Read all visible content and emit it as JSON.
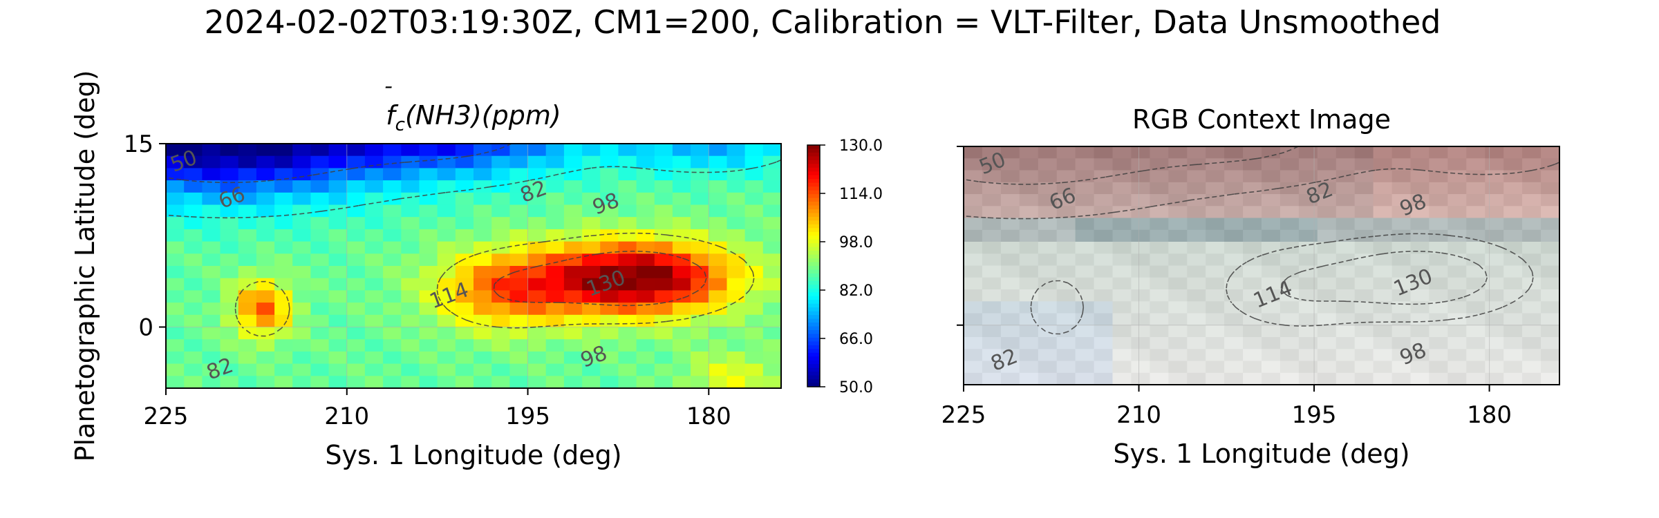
{
  "figure": {
    "suptitle": "2024-02-02T03:19:30Z, CM1=200, Calibration = VLT-Filter, Data Unsmoothed"
  },
  "chart_data": [
    {
      "type": "heatmap",
      "title_base": "f",
      "title_sub": "c",
      "title_rest": "(NH3)(ppm)",
      "xlabel": "Sys. 1 Longitude (deg)",
      "ylabel": "Planetographic Latitude (deg)",
      "xlim": [
        225,
        174
      ],
      "ylim": [
        -5,
        15
      ],
      "xticks": [
        225,
        210,
        195,
        180
      ],
      "yticks": [
        0,
        15
      ],
      "grid": true,
      "colormap": "jet",
      "colorbar": {
        "min": 50.0,
        "max": 130.0,
        "ticks": [
          "50.0",
          "66.0",
          "82.0",
          "98.0",
          "114.0",
          "130.0"
        ]
      },
      "contour_levels": [
        50,
        66,
        82,
        98,
        114,
        130
      ],
      "contour_labels": [
        {
          "text": "50",
          "lon": 223.5,
          "lat": 13.5
        },
        {
          "text": "66",
          "lon": 219.5,
          "lat": 10.5
        },
        {
          "text": "82",
          "lon": 194.5,
          "lat": 11.0
        },
        {
          "text": "98",
          "lon": 188.5,
          "lat": 10.0
        },
        {
          "text": "114",
          "lon": 201.5,
          "lat": 2.5
        },
        {
          "text": "130",
          "lon": 188.5,
          "lat": 3.5
        },
        {
          "text": "82",
          "lon": 220.5,
          "lat": -3.5
        },
        {
          "text": "98",
          "lon": 189.5,
          "lat": -2.5
        }
      ],
      "value_field": {
        "background": 88,
        "components": [
          {
            "lon": 220,
            "lat": 16,
            "amp": -44,
            "sl": 14,
            "sb": 5
          },
          {
            "lon": 200,
            "lat": 16,
            "amp": -24,
            "sl": 10,
            "sb": 3.5
          },
          {
            "lon": 180,
            "lat": 15,
            "amp": -14,
            "sl": 8,
            "sb": 2.5
          },
          {
            "lon": 186,
            "lat": 4,
            "amp": 44,
            "sl": 8,
            "sb": 3
          },
          {
            "lon": 197,
            "lat": 3,
            "amp": 22,
            "sl": 6,
            "sb": 3.2
          },
          {
            "lon": 217,
            "lat": 1.5,
            "amp": 24,
            "sl": 2.4,
            "sb": 2.4
          },
          {
            "lon": 178,
            "lat": -4,
            "amp": 10,
            "sl": 4,
            "sb": 2
          }
        ]
      }
    },
    {
      "type": "image",
      "title": "RGB Context Image",
      "xlabel": "Sys. 1 Longitude (deg)",
      "xlim": [
        225,
        174
      ],
      "ylim": [
        -5,
        15
      ],
      "xticks": [
        225,
        210,
        195,
        180
      ],
      "yticks": [
        0,
        15
      ],
      "grid": true,
      "contour_labels": [
        {
          "text": "50",
          "lon": 222.5,
          "lat": 13.5
        },
        {
          "text": "66",
          "lon": 216.5,
          "lat": 10.5
        },
        {
          "text": "82",
          "lon": 194.5,
          "lat": 11.0
        },
        {
          "text": "98",
          "lon": 186.5,
          "lat": 10.0
        },
        {
          "text": "114",
          "lon": 198.5,
          "lat": 2.5
        },
        {
          "text": "130",
          "lon": 186.5,
          "lat": 3.5
        },
        {
          "text": "82",
          "lon": 221.5,
          "lat": -3.0
        },
        {
          "text": "98",
          "lon": 186.5,
          "lat": -2.5
        }
      ]
    }
  ]
}
